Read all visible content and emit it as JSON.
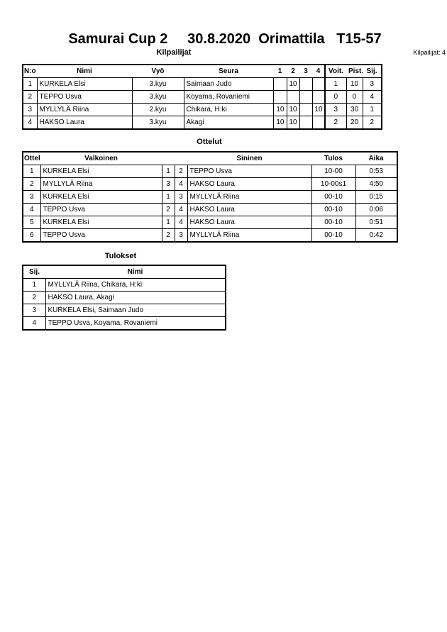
{
  "title": "Samurai Cup 2     30.8.2020  Orimattila   T15-57",
  "competitors": {
    "heading": "Kilpailijat",
    "count_label": "Kilpailijat: 4",
    "columns": [
      "N:o",
      "Nimi",
      "Vyö",
      "Seura",
      "1",
      "2",
      "3",
      "4",
      "Voit.",
      "Pist.",
      "Sij."
    ],
    "rows": [
      {
        "no": "1",
        "name": "KURKELA Elsi",
        "belt": "3.kyu",
        "club": "Saimaan Judo",
        "m1": "",
        "m2": "10",
        "m3": "",
        "m4": "",
        "wins": "1",
        "points": "10",
        "place": "3"
      },
      {
        "no": "2",
        "name": "TEPPO Usva",
        "belt": "3.kyu",
        "club": "Koyama, Rovaniemi",
        "m1": "",
        "m2": "",
        "m3": "",
        "m4": "",
        "wins": "0",
        "points": "0",
        "place": "4"
      },
      {
        "no": "3",
        "name": "MYLLYLÄ Riina",
        "belt": "2.kyu",
        "club": "Chikara, H:ki",
        "m1": "10",
        "m2": "10",
        "m3": "",
        "m4": "10",
        "wins": "3",
        "points": "30",
        "place": "1"
      },
      {
        "no": "4",
        "name": "HAKSO Laura",
        "belt": "3.kyu",
        "club": "Akagi",
        "m1": "10",
        "m2": "10",
        "m3": "",
        "m4": "",
        "wins": "2",
        "points": "20",
        "place": "2"
      }
    ]
  },
  "matches": {
    "heading": "Ottelut",
    "columns": [
      "Ottelu",
      "Valkoinen",
      "Sininen",
      "Tulos",
      "Aika"
    ],
    "rows": [
      {
        "no": "1",
        "white": "KURKELA Elsi",
        "wn": "1",
        "bn": "2",
        "blue": "TEPPO Usva",
        "result": "10-00",
        "time": "0:53"
      },
      {
        "no": "2",
        "white": "MYLLYLÄ Riina",
        "wn": "3",
        "bn": "4",
        "blue": "HAKSO Laura",
        "result": "10-00s1",
        "time": "4:50"
      },
      {
        "no": "3",
        "white": "KURKELA Elsi",
        "wn": "1",
        "bn": "3",
        "blue": "MYLLYLÄ Riina",
        "result": "00-10",
        "time": "0:15"
      },
      {
        "no": "4",
        "white": "TEPPO Usva",
        "wn": "2",
        "bn": "4",
        "blue": "HAKSO Laura",
        "result": "00-10",
        "time": "0:06"
      },
      {
        "no": "5",
        "white": "KURKELA Elsi",
        "wn": "1",
        "bn": "4",
        "blue": "HAKSO Laura",
        "result": "00-10",
        "time": "0:51"
      },
      {
        "no": "6",
        "white": "TEPPO Usva",
        "wn": "2",
        "bn": "3",
        "blue": "MYLLYLÄ Riina",
        "result": "00-10",
        "time": "0:42"
      }
    ]
  },
  "results": {
    "heading": "Tulokset",
    "columns": [
      "Sij.",
      "Nimi"
    ],
    "rows": [
      {
        "place": "1",
        "name": "MYLLYLÄ Riina, Chikara, H:ki"
      },
      {
        "place": "2",
        "name": "HAKSO Laura, Akagi"
      },
      {
        "place": "3",
        "name": "KURKELA Elsi, Saimaan Judo"
      },
      {
        "place": "4",
        "name": "TEPPO Usva, Koyama, Rovaniemi"
      }
    ]
  }
}
